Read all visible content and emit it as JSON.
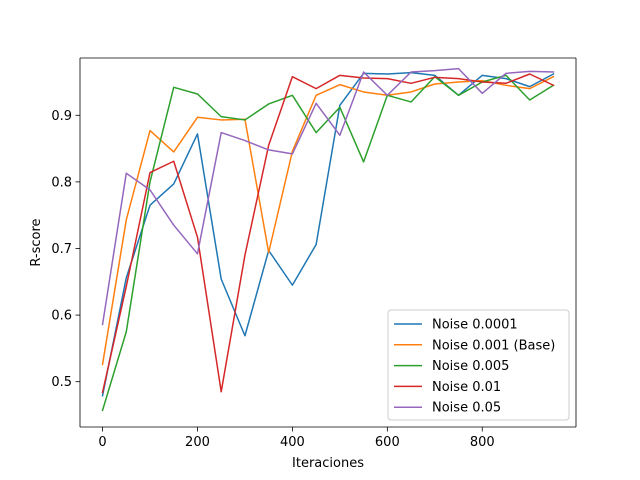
{
  "chart_data": {
    "type": "line",
    "title": "",
    "xlabel": "Iteraciones",
    "ylabel": "R-score",
    "xlim": [
      -47.5,
      997.5
    ],
    "ylim": [
      0.432,
      0.986
    ],
    "xticks": [
      0,
      200,
      400,
      600,
      800
    ],
    "yticks": [
      0.5,
      0.6,
      0.7,
      0.8,
      0.9
    ],
    "x": [
      0,
      50,
      100,
      150,
      200,
      250,
      300,
      350,
      400,
      450,
      500,
      550,
      600,
      650,
      700,
      750,
      800,
      850,
      900,
      950
    ],
    "grid": false,
    "legend_position": "lower-right",
    "series": [
      {
        "name": "Noise 0.0001",
        "color": "#1f77b4",
        "values": [
          0.479,
          0.656,
          0.765,
          0.797,
          0.872,
          0.654,
          0.569,
          0.697,
          0.645,
          0.706,
          0.915,
          0.963,
          0.962,
          0.964,
          0.96,
          0.93,
          0.96,
          0.955,
          0.943,
          0.962
        ]
      },
      {
        "name": "Noise 0.001 (Base)",
        "color": "#ff7f0e",
        "values": [
          0.526,
          0.743,
          0.877,
          0.845,
          0.897,
          0.893,
          0.894,
          0.694,
          0.846,
          0.93,
          0.946,
          0.935,
          0.93,
          0.935,
          0.947,
          0.95,
          0.952,
          0.945,
          0.94,
          0.958
        ]
      },
      {
        "name": "Noise 0.005",
        "color": "#2ca02c",
        "values": [
          0.457,
          0.575,
          0.8,
          0.942,
          0.932,
          0.898,
          0.893,
          0.917,
          0.93,
          0.874,
          0.912,
          0.83,
          0.93,
          0.92,
          0.958,
          0.93,
          0.95,
          0.96,
          0.923,
          0.945
        ]
      },
      {
        "name": "Noise 0.01",
        "color": "#d62728",
        "values": [
          0.484,
          0.643,
          0.814,
          0.831,
          0.717,
          0.485,
          0.69,
          0.855,
          0.958,
          0.94,
          0.96,
          0.956,
          0.955,
          0.948,
          0.957,
          0.955,
          0.95,
          0.948,
          0.962,
          0.945
        ]
      },
      {
        "name": "Noise 0.05",
        "color": "#9467bd",
        "values": [
          0.586,
          0.813,
          0.788,
          0.735,
          0.692,
          0.874,
          0.862,
          0.848,
          0.842,
          0.918,
          0.87,
          0.965,
          0.93,
          0.965,
          0.967,
          0.97,
          0.933,
          0.963,
          0.966,
          0.965
        ]
      }
    ]
  }
}
